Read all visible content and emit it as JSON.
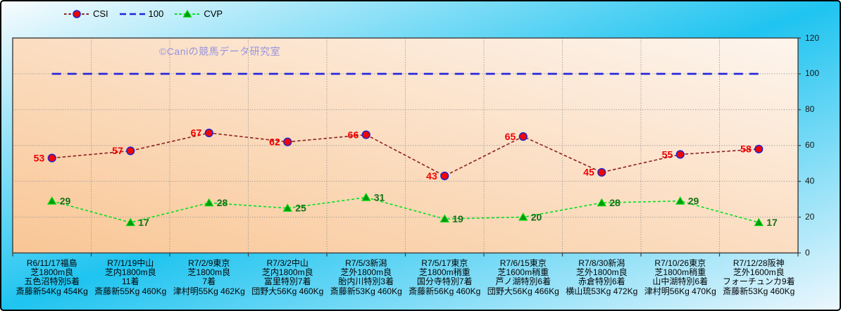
{
  "watermark": "©Caniの競馬データ研究室",
  "legend": {
    "position": "top-left",
    "items": [
      {
        "label": "CSI",
        "series": "CSI"
      },
      {
        "label": "100",
        "series": "100"
      },
      {
        "label": "CVP",
        "series": "CVP"
      }
    ]
  },
  "y_axis": {
    "side": "right",
    "ticks": [
      0,
      20,
      40,
      60,
      80,
      100,
      120
    ]
  },
  "chart_data": {
    "type": "line",
    "title": "",
    "xlabel": "",
    "ylabel": "",
    "ylim": [
      0,
      120
    ],
    "ytick_step": 20,
    "grid": true,
    "legend_position": "top-left",
    "categories": [
      [
        "R6/11/17福島",
        "芝1800m良",
        "五色沼特別5着",
        "斎藤新54Kg 454Kg"
      ],
      [
        "R7/1/19中山",
        "芝内1800m良",
        "11着",
        "斎藤新55Kg 460Kg"
      ],
      [
        "R7/2/9東京",
        "芝1800m良",
        "7着",
        "津村明55Kg 462Kg"
      ],
      [
        "R7/3/2中山",
        "芝内1800m良",
        "富里特別7着",
        "団野大56Kg 460Kg"
      ],
      [
        "R7/5/3新潟",
        "芝外1800m良",
        "胎内川特別3着",
        "斎藤新53Kg 460Kg"
      ],
      [
        "R7/5/17東京",
        "芝1800m稍重",
        "国分寺特別7着",
        "斎藤新56Kg 460Kg"
      ],
      [
        "R7/6/15東京",
        "芝1600m稍重",
        "芦ノ湖特別6着",
        "団野大56Kg 466Kg"
      ],
      [
        "R7/8/30新潟",
        "芝外1800m良",
        "赤倉特別6着",
        "横山琉53Kg 472Kg"
      ],
      [
        "R7/10/26東京",
        "芝1800m稍重",
        "山中湖特別6着",
        "津村明56Kg 470Kg"
      ],
      [
        "R7/12/28阪神",
        "芝外1600m良",
        "フォーチュンカ9着",
        "斎藤新53Kg 460Kg"
      ]
    ],
    "series": [
      {
        "name": "CSI",
        "values": [
          53,
          57,
          67,
          62,
          66,
          43,
          65,
          45,
          55,
          58
        ],
        "line_color": "#8b2020",
        "line_dash": "4.5 3",
        "line_width": 1.6,
        "marker": "circle",
        "marker_fill": "#f00505",
        "marker_edge": "#2222cc",
        "show_labels": true,
        "label_color": "#f00000",
        "label_side": "left"
      },
      {
        "name": "100",
        "values": [
          100,
          100,
          100,
          100,
          100,
          100,
          100,
          100,
          100,
          100
        ],
        "line_color": "#2222dd",
        "line_dash": "13 9",
        "line_width": 2.6,
        "marker": "none",
        "show_labels": false
      },
      {
        "name": "CVP",
        "values": [
          29,
          17,
          28,
          25,
          31,
          19,
          20,
          28,
          29,
          17
        ],
        "line_color": "#00e122",
        "line_dash": "4 3",
        "line_width": 1.6,
        "marker": "triangle",
        "marker_fill": "#009a12",
        "marker_edge": "#00dd00",
        "show_labels": true,
        "label_color": "#157015",
        "label_side": "right"
      }
    ]
  },
  "style": {
    "plot_gradient": [
      "#f9c695",
      "#fdf5ee"
    ],
    "background_gradient": [
      "#f8fcfe",
      "#1fc4f0",
      "#ecf7fd"
    ],
    "gridline_color": "#969696",
    "plot_border_color": "#3d3d3d",
    "tick_label_color": "#161616"
  }
}
